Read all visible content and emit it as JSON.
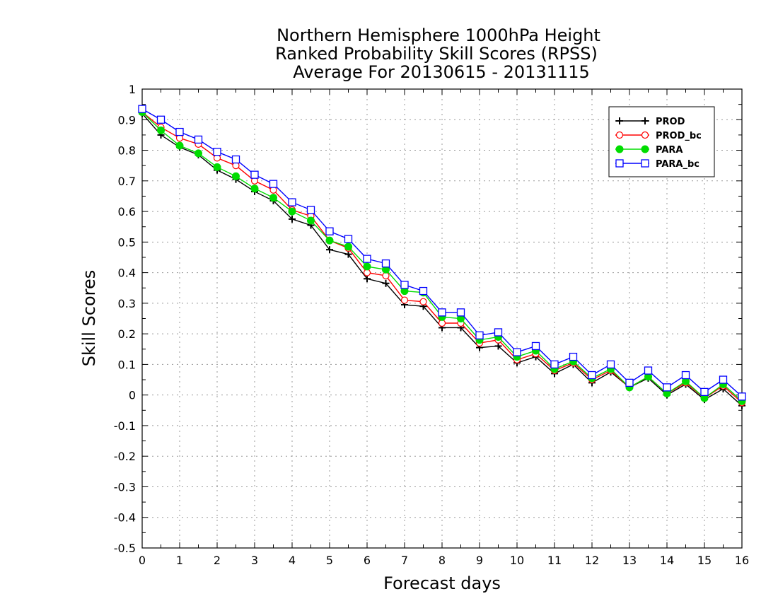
{
  "chart_data": {
    "type": "line",
    "title": [
      "Northern Hemisphere 1000hPa Height",
      "Ranked Probability Skill Scores (RPSS)",
      "Average For 20130615 - 20131115"
    ],
    "xlabel": "Forecast days",
    "ylabel": "Skill Scores",
    "xlim": [
      0,
      16
    ],
    "ylim": [
      -0.5,
      1
    ],
    "xticks": [
      "0",
      "1",
      "2",
      "3",
      "4",
      "5",
      "6",
      "7",
      "8",
      "9",
      "10",
      "11",
      "12",
      "13",
      "14",
      "15",
      "16"
    ],
    "yticks": [
      "-0.5",
      "-0.4",
      "-0.3",
      "-0.2",
      "-0.1",
      "0",
      "0.1",
      "0.2",
      "0.3",
      "0.4",
      "0.5",
      "0.6",
      "0.7",
      "0.8",
      "0.9",
      "1"
    ],
    "grid": true,
    "legend_position": "top-right",
    "x": [
      0,
      0.5,
      1,
      1.5,
      2,
      2.5,
      3,
      3.5,
      4,
      4.5,
      5,
      5.5,
      6,
      6.5,
      7,
      7.5,
      8,
      8.5,
      9,
      9.5,
      10,
      10.5,
      11,
      11.5,
      12,
      12.5,
      13,
      13.5,
      14,
      14.5,
      15,
      15.5,
      16
    ],
    "series": [
      {
        "name": "PROD",
        "color": "#000000",
        "marker": "plus",
        "values": [
          0.92,
          0.85,
          0.81,
          0.785,
          0.735,
          0.705,
          0.665,
          0.635,
          0.575,
          0.555,
          0.475,
          0.46,
          0.38,
          0.365,
          0.295,
          0.29,
          0.22,
          0.22,
          0.155,
          0.16,
          0.105,
          0.125,
          0.07,
          0.1,
          0.04,
          0.075,
          0.025,
          0.055,
          0.0,
          0.035,
          -0.015,
          0.02,
          -0.035
        ]
      },
      {
        "name": "PROD_bc",
        "color": "#ff0000",
        "marker": "open-circle",
        "values": [
          0.925,
          0.875,
          0.84,
          0.82,
          0.775,
          0.75,
          0.7,
          0.67,
          0.605,
          0.585,
          0.505,
          0.48,
          0.4,
          0.39,
          0.31,
          0.305,
          0.235,
          0.235,
          0.17,
          0.18,
          0.115,
          0.135,
          0.08,
          0.105,
          0.05,
          0.08,
          0.025,
          0.06,
          0.005,
          0.04,
          -0.01,
          0.03,
          -0.025
        ]
      },
      {
        "name": "PARA",
        "color": "#00dd00",
        "marker": "filled-circle",
        "values": [
          0.925,
          0.865,
          0.815,
          0.79,
          0.745,
          0.715,
          0.675,
          0.645,
          0.6,
          0.57,
          0.505,
          0.485,
          0.42,
          0.41,
          0.34,
          0.335,
          0.255,
          0.25,
          0.18,
          0.19,
          0.125,
          0.145,
          0.085,
          0.11,
          0.055,
          0.085,
          0.025,
          0.06,
          0.005,
          0.045,
          -0.01,
          0.035,
          -0.02
        ]
      },
      {
        "name": "PARA_bc",
        "color": "#0000ff",
        "marker": "open-square",
        "values": [
          0.935,
          0.9,
          0.86,
          0.835,
          0.795,
          0.77,
          0.72,
          0.69,
          0.63,
          0.605,
          0.535,
          0.51,
          0.445,
          0.43,
          0.36,
          0.34,
          0.27,
          0.27,
          0.195,
          0.205,
          0.14,
          0.16,
          0.1,
          0.125,
          0.065,
          0.1,
          0.04,
          0.08,
          0.025,
          0.065,
          0.01,
          0.05,
          -0.005
        ]
      }
    ]
  }
}
